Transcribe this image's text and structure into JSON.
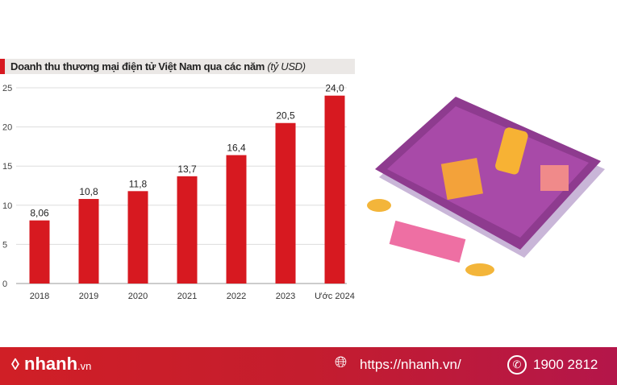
{
  "chart_data": {
    "type": "bar",
    "title": "Doanh thu thương mại điện tử Việt Nam qua các năm",
    "unit": "(tỷ USD)",
    "categories": [
      "2018",
      "2019",
      "2020",
      "2021",
      "2022",
      "2023",
      "Ước 2024"
    ],
    "values": [
      8.06,
      10.8,
      11.8,
      13.7,
      16.4,
      20.5,
      24.0
    ],
    "labels": [
      "8,06",
      "10,8",
      "11,8",
      "13,7",
      "16,4",
      "20,5",
      "24,0"
    ],
    "yticks": [
      0,
      5,
      10,
      15,
      20,
      25
    ],
    "ylim": [
      0,
      25
    ],
    "color": "#d71920",
    "grid": true
  },
  "footer": {
    "brand": "nhanh",
    "brand_suffix": ".vn",
    "url": "https://nhanh.vn/",
    "phone": "1900 2812"
  }
}
